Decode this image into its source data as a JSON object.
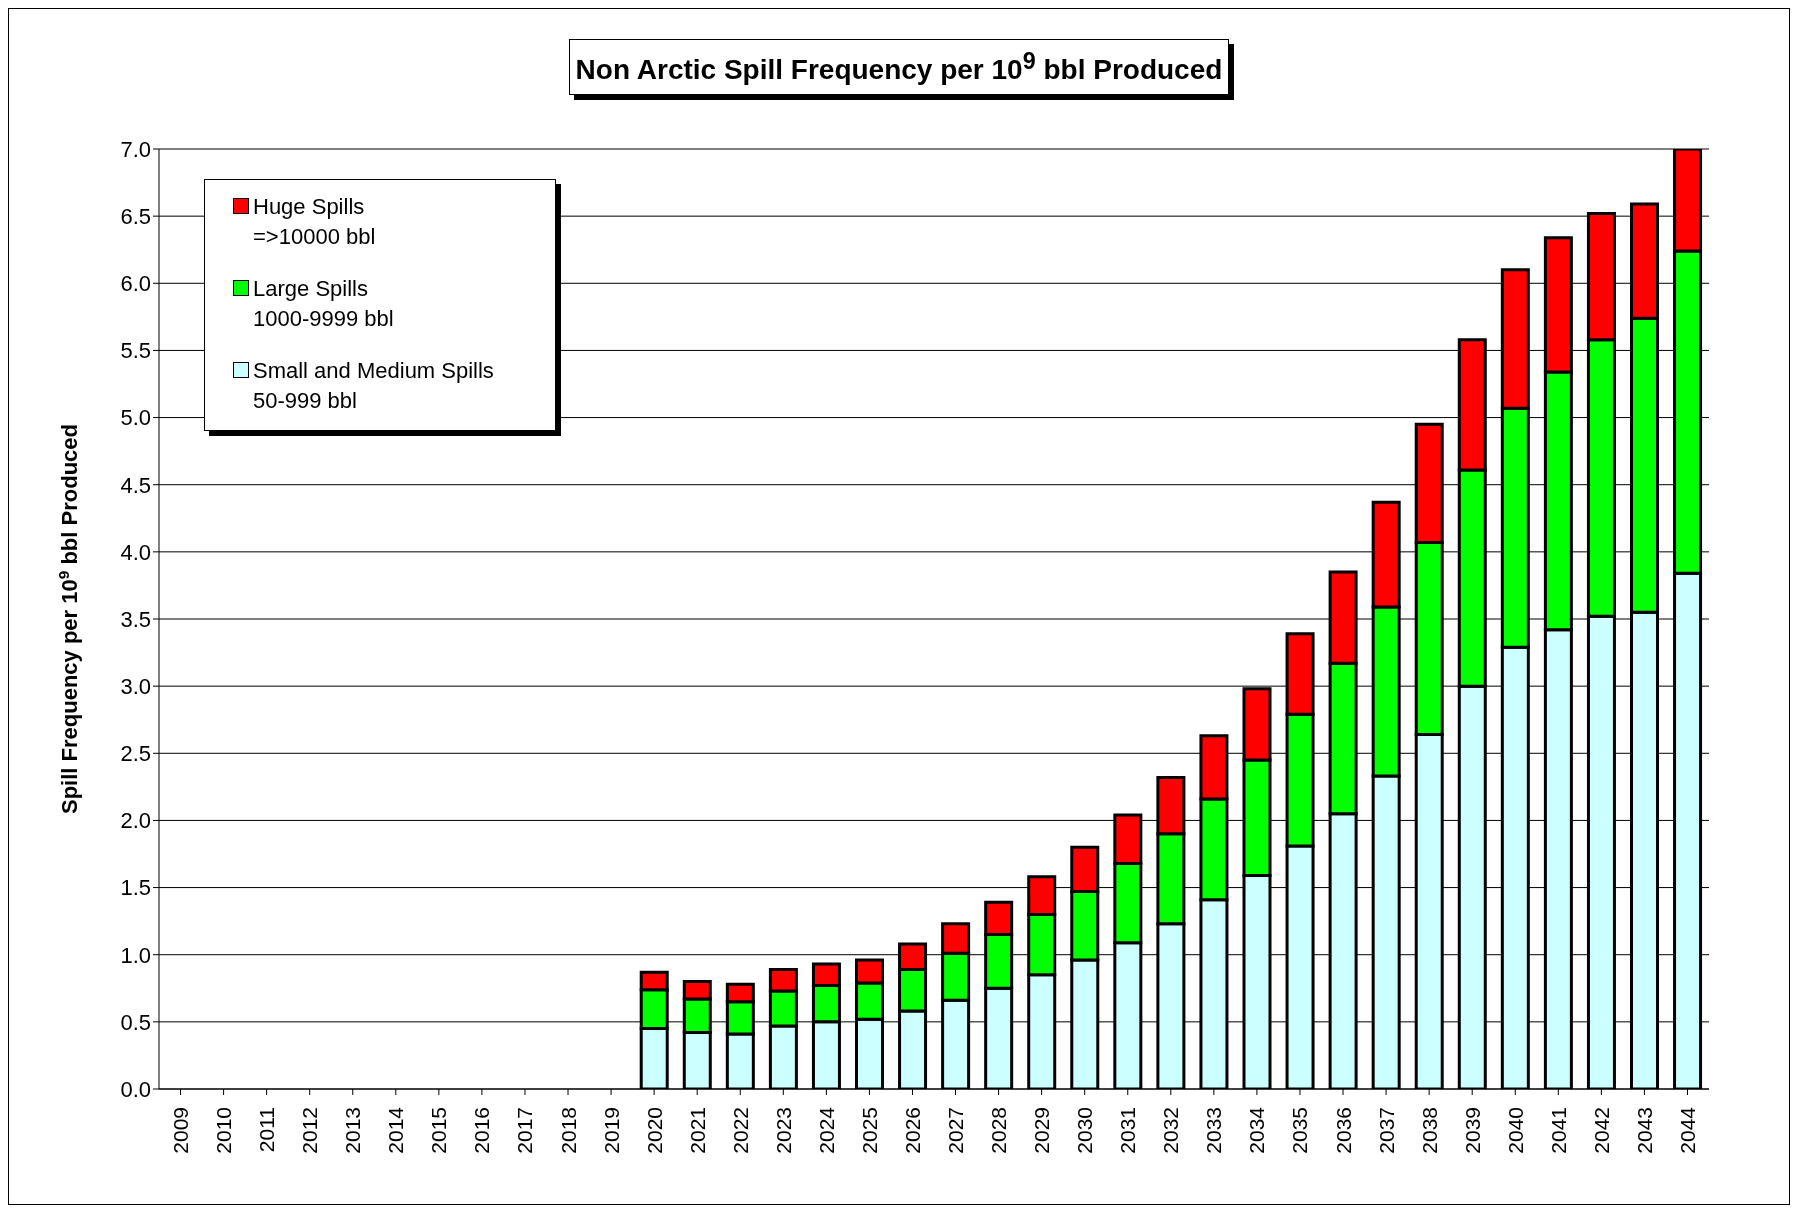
{
  "chart_data": {
    "type": "bar",
    "title": "Non Arctic Spill Frequency per 10$^{9}$ bbl Produced",
    "ylabel": "Spill Frequency per 10$^{9}$ bbl Produced",
    "categories": [
      "2009",
      "2010",
      "2011",
      "2012",
      "2013",
      "2014",
      "2015",
      "2016",
      "2017",
      "2018",
      "2019",
      "2020",
      "2021",
      "2022",
      "2023",
      "2024",
      "2025",
      "2026",
      "2027",
      "2028",
      "2029",
      "2030",
      "2031",
      "2032",
      "2033",
      "2034",
      "2035",
      "2036",
      "2037",
      "2038",
      "2039",
      "2040",
      "2041",
      "2042",
      "2043",
      "2044"
    ],
    "stacked": true,
    "series": [
      {
        "name": "Small and Medium Spills\n50-999 bbl",
        "color": "#ccffff",
        "values": [
          null,
          null,
          null,
          null,
          null,
          null,
          null,
          null,
          null,
          null,
          null,
          0.45,
          0.42,
          0.41,
          0.47,
          0.5,
          0.52,
          0.58,
          0.66,
          0.75,
          0.85,
          0.96,
          1.09,
          1.23,
          1.41,
          1.59,
          1.81,
          2.05,
          2.33,
          2.64,
          3.0,
          3.29,
          3.42,
          3.52,
          3.55,
          3.84
        ]
      },
      {
        "name": "Large Spills\n1000-9999 bbl",
        "color": "#00ff00",
        "values": [
          null,
          null,
          null,
          null,
          null,
          null,
          null,
          null,
          null,
          null,
          null,
          0.29,
          0.25,
          0.24,
          0.26,
          0.27,
          0.27,
          0.31,
          0.35,
          0.4,
          0.45,
          0.51,
          0.59,
          0.67,
          0.75,
          0.86,
          0.98,
          1.12,
          1.26,
          1.43,
          1.61,
          1.78,
          1.92,
          2.06,
          2.19,
          2.4
        ]
      },
      {
        "name": "Huge Spills\n=>10000 bbl",
        "color": "#ff0000",
        "values": [
          null,
          null,
          null,
          null,
          null,
          null,
          null,
          null,
          null,
          null,
          null,
          0.13,
          0.13,
          0.13,
          0.16,
          0.16,
          0.17,
          0.19,
          0.22,
          0.24,
          0.28,
          0.33,
          0.36,
          0.42,
          0.47,
          0.53,
          0.6,
          0.68,
          0.78,
          0.88,
          0.97,
          1.03,
          1.0,
          0.94,
          0.85,
          0.76
        ]
      }
    ],
    "ylim": [
      0,
      7
    ],
    "yticks": [
      {
        "value": 0,
        "label": "0.0"
      },
      {
        "value": 0.5,
        "label": "0.5"
      },
      {
        "value": 1,
        "label": "1.0"
      },
      {
        "value": 1.5,
        "label": "1.5"
      },
      {
        "value": 2,
        "label": "2.0"
      },
      {
        "value": 2.5,
        "label": "2.5"
      },
      {
        "value": 3,
        "label": "3.0"
      },
      {
        "value": 3.5,
        "label": "3.5"
      },
      {
        "value": 4,
        "label": "4.0"
      },
      {
        "value": 4.5,
        "label": "4.5"
      },
      {
        "value": 5,
        "label": "5.0"
      },
      {
        "value": 5.5,
        "label": "5.5"
      },
      {
        "value": 6,
        "label": "6.0"
      },
      {
        "value": 6.5,
        "label": "6.5"
      },
      {
        "value": 7,
        "label": "7.0"
      }
    ],
    "grid": "y",
    "legend": "top left"
  }
}
